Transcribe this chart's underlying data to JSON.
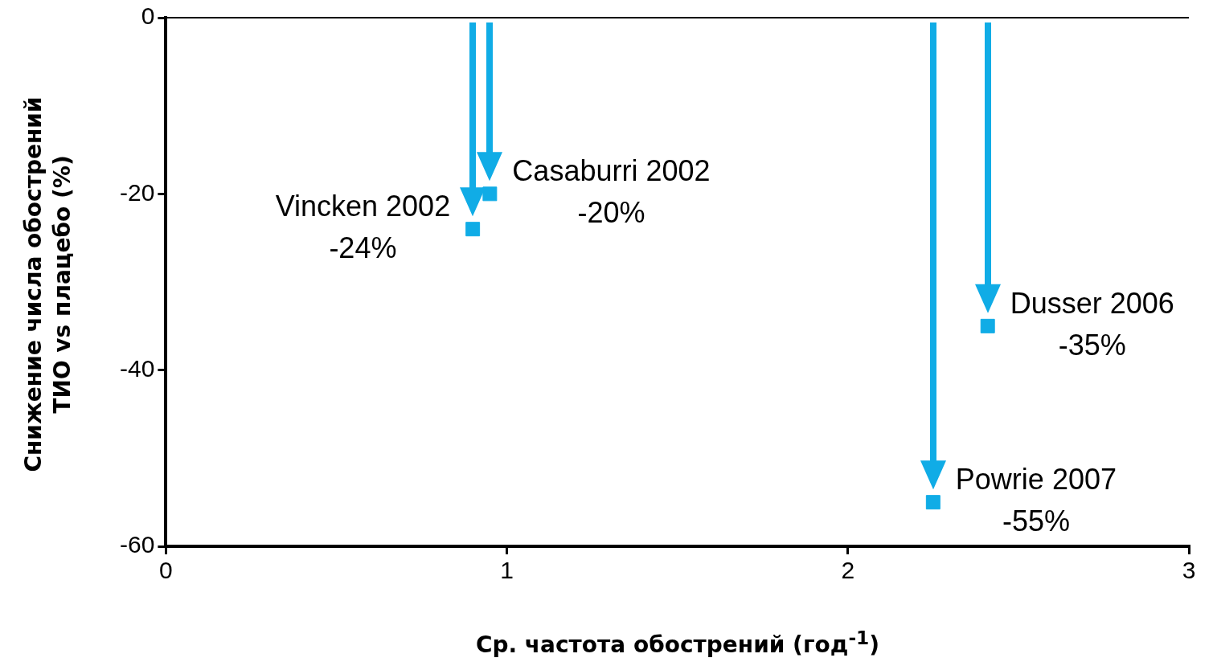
{
  "chart_data": {
    "type": "scatter",
    "xlabel": "Ср. частота обострений (год$^{-1}$)",
    "ylabel": "Снижение числа обострений\nТИО vs плацебо (%)",
    "x": [
      0.9,
      0.95,
      2.25,
      2.41
    ],
    "values": [
      -24,
      -20,
      -55,
      -35
    ],
    "color": "#10ace6",
    "marker": "square",
    "grid": false,
    "legend": false,
    "xlim": [
      0,
      3
    ],
    "xticks": [
      0,
      1,
      2,
      3
    ],
    "ylim": [
      -60,
      0
    ],
    "yticks": [
      -60,
      -40,
      -20,
      0
    ],
    "ref_lines": [
      {
        "axis": "y",
        "value": 0,
        "color": "#000000"
      }
    ],
    "annotations": [
      {
        "text": "Vincken 2002\n-24%",
        "x": 0.9,
        "y": -24
      },
      {
        "text": "Casaburri 2002\n-20%",
        "x": 0.95,
        "y": -20
      },
      {
        "text": "Powrie 2007\n-55%",
        "x": 2.25,
        "y": -55
      },
      {
        "text": "Dusser 2006\n-35%",
        "x": 2.41,
        "y": -35
      }
    ]
  }
}
